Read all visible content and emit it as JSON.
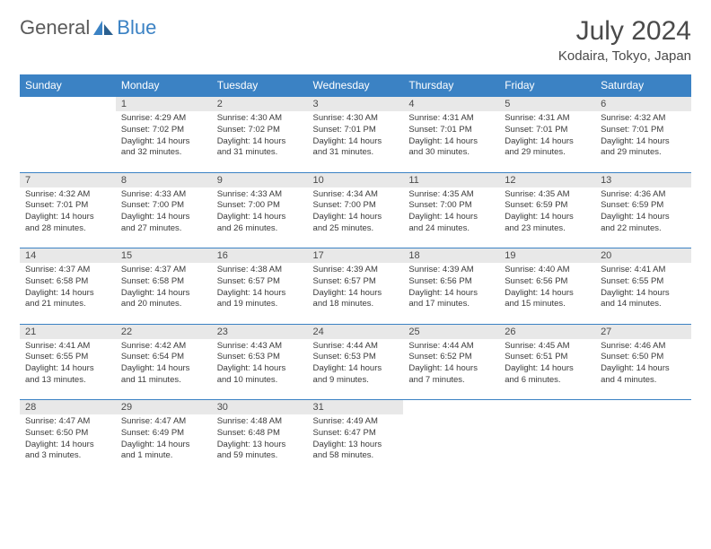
{
  "logo": {
    "text1": "General",
    "text2": "Blue"
  },
  "title": {
    "month": "July 2024",
    "location": "Kodaira, Tokyo, Japan"
  },
  "colors": {
    "header_bg": "#3b82c4",
    "num_bg": "#e8e8e8",
    "accent": "#3b82c4"
  },
  "dayHeaders": [
    "Sunday",
    "Monday",
    "Tuesday",
    "Wednesday",
    "Thursday",
    "Friday",
    "Saturday"
  ],
  "weeks": [
    {
      "nums": [
        "",
        "1",
        "2",
        "3",
        "4",
        "5",
        "6"
      ],
      "cells": [
        null,
        {
          "sunrise": "Sunrise: 4:29 AM",
          "sunset": "Sunset: 7:02 PM",
          "d1": "Daylight: 14 hours",
          "d2": "and 32 minutes."
        },
        {
          "sunrise": "Sunrise: 4:30 AM",
          "sunset": "Sunset: 7:02 PM",
          "d1": "Daylight: 14 hours",
          "d2": "and 31 minutes."
        },
        {
          "sunrise": "Sunrise: 4:30 AM",
          "sunset": "Sunset: 7:01 PM",
          "d1": "Daylight: 14 hours",
          "d2": "and 31 minutes."
        },
        {
          "sunrise": "Sunrise: 4:31 AM",
          "sunset": "Sunset: 7:01 PM",
          "d1": "Daylight: 14 hours",
          "d2": "and 30 minutes."
        },
        {
          "sunrise": "Sunrise: 4:31 AM",
          "sunset": "Sunset: 7:01 PM",
          "d1": "Daylight: 14 hours",
          "d2": "and 29 minutes."
        },
        {
          "sunrise": "Sunrise: 4:32 AM",
          "sunset": "Sunset: 7:01 PM",
          "d1": "Daylight: 14 hours",
          "d2": "and 29 minutes."
        }
      ]
    },
    {
      "nums": [
        "7",
        "8",
        "9",
        "10",
        "11",
        "12",
        "13"
      ],
      "cells": [
        {
          "sunrise": "Sunrise: 4:32 AM",
          "sunset": "Sunset: 7:01 PM",
          "d1": "Daylight: 14 hours",
          "d2": "and 28 minutes."
        },
        {
          "sunrise": "Sunrise: 4:33 AM",
          "sunset": "Sunset: 7:00 PM",
          "d1": "Daylight: 14 hours",
          "d2": "and 27 minutes."
        },
        {
          "sunrise": "Sunrise: 4:33 AM",
          "sunset": "Sunset: 7:00 PM",
          "d1": "Daylight: 14 hours",
          "d2": "and 26 minutes."
        },
        {
          "sunrise": "Sunrise: 4:34 AM",
          "sunset": "Sunset: 7:00 PM",
          "d1": "Daylight: 14 hours",
          "d2": "and 25 minutes."
        },
        {
          "sunrise": "Sunrise: 4:35 AM",
          "sunset": "Sunset: 7:00 PM",
          "d1": "Daylight: 14 hours",
          "d2": "and 24 minutes."
        },
        {
          "sunrise": "Sunrise: 4:35 AM",
          "sunset": "Sunset: 6:59 PM",
          "d1": "Daylight: 14 hours",
          "d2": "and 23 minutes."
        },
        {
          "sunrise": "Sunrise: 4:36 AM",
          "sunset": "Sunset: 6:59 PM",
          "d1": "Daylight: 14 hours",
          "d2": "and 22 minutes."
        }
      ]
    },
    {
      "nums": [
        "14",
        "15",
        "16",
        "17",
        "18",
        "19",
        "20"
      ],
      "cells": [
        {
          "sunrise": "Sunrise: 4:37 AM",
          "sunset": "Sunset: 6:58 PM",
          "d1": "Daylight: 14 hours",
          "d2": "and 21 minutes."
        },
        {
          "sunrise": "Sunrise: 4:37 AM",
          "sunset": "Sunset: 6:58 PM",
          "d1": "Daylight: 14 hours",
          "d2": "and 20 minutes."
        },
        {
          "sunrise": "Sunrise: 4:38 AM",
          "sunset": "Sunset: 6:57 PM",
          "d1": "Daylight: 14 hours",
          "d2": "and 19 minutes."
        },
        {
          "sunrise": "Sunrise: 4:39 AM",
          "sunset": "Sunset: 6:57 PM",
          "d1": "Daylight: 14 hours",
          "d2": "and 18 minutes."
        },
        {
          "sunrise": "Sunrise: 4:39 AM",
          "sunset": "Sunset: 6:56 PM",
          "d1": "Daylight: 14 hours",
          "d2": "and 17 minutes."
        },
        {
          "sunrise": "Sunrise: 4:40 AM",
          "sunset": "Sunset: 6:56 PM",
          "d1": "Daylight: 14 hours",
          "d2": "and 15 minutes."
        },
        {
          "sunrise": "Sunrise: 4:41 AM",
          "sunset": "Sunset: 6:55 PM",
          "d1": "Daylight: 14 hours",
          "d2": "and 14 minutes."
        }
      ]
    },
    {
      "nums": [
        "21",
        "22",
        "23",
        "24",
        "25",
        "26",
        "27"
      ],
      "cells": [
        {
          "sunrise": "Sunrise: 4:41 AM",
          "sunset": "Sunset: 6:55 PM",
          "d1": "Daylight: 14 hours",
          "d2": "and 13 minutes."
        },
        {
          "sunrise": "Sunrise: 4:42 AM",
          "sunset": "Sunset: 6:54 PM",
          "d1": "Daylight: 14 hours",
          "d2": "and 11 minutes."
        },
        {
          "sunrise": "Sunrise: 4:43 AM",
          "sunset": "Sunset: 6:53 PM",
          "d1": "Daylight: 14 hours",
          "d2": "and 10 minutes."
        },
        {
          "sunrise": "Sunrise: 4:44 AM",
          "sunset": "Sunset: 6:53 PM",
          "d1": "Daylight: 14 hours",
          "d2": "and 9 minutes."
        },
        {
          "sunrise": "Sunrise: 4:44 AM",
          "sunset": "Sunset: 6:52 PM",
          "d1": "Daylight: 14 hours",
          "d2": "and 7 minutes."
        },
        {
          "sunrise": "Sunrise: 4:45 AM",
          "sunset": "Sunset: 6:51 PM",
          "d1": "Daylight: 14 hours",
          "d2": "and 6 minutes."
        },
        {
          "sunrise": "Sunrise: 4:46 AM",
          "sunset": "Sunset: 6:50 PM",
          "d1": "Daylight: 14 hours",
          "d2": "and 4 minutes."
        }
      ]
    },
    {
      "nums": [
        "28",
        "29",
        "30",
        "31",
        "",
        "",
        ""
      ],
      "cells": [
        {
          "sunrise": "Sunrise: 4:47 AM",
          "sunset": "Sunset: 6:50 PM",
          "d1": "Daylight: 14 hours",
          "d2": "and 3 minutes."
        },
        {
          "sunrise": "Sunrise: 4:47 AM",
          "sunset": "Sunset: 6:49 PM",
          "d1": "Daylight: 14 hours",
          "d2": "and 1 minute."
        },
        {
          "sunrise": "Sunrise: 4:48 AM",
          "sunset": "Sunset: 6:48 PM",
          "d1": "Daylight: 13 hours",
          "d2": "and 59 minutes."
        },
        {
          "sunrise": "Sunrise: 4:49 AM",
          "sunset": "Sunset: 6:47 PM",
          "d1": "Daylight: 13 hours",
          "d2": "and 58 minutes."
        },
        null,
        null,
        null
      ]
    }
  ]
}
